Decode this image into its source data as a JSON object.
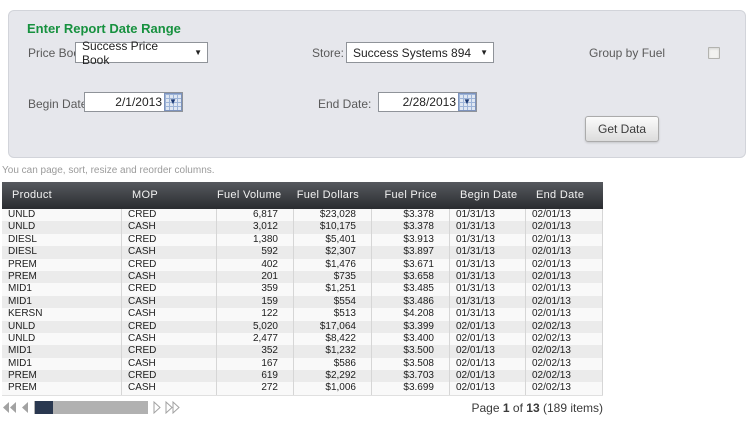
{
  "colors": {
    "title_green": "#17913f",
    "panel_background": "#e6e7ec",
    "table_header_top": "#56595e",
    "table_header_bottom": "#2a2c30",
    "row_odd": "#f9f9f9",
    "row_even": "#ebebeb",
    "pager_thumb": "#2a3850"
  },
  "panel": {
    "title": "Enter Report Date Range",
    "price_book": {
      "label": "Price Book:",
      "value": "Success Price Book"
    },
    "store": {
      "label": "Store:",
      "value": "Success Systems 894"
    },
    "group_by_fuel": {
      "label": "Group by Fuel",
      "checked": false
    },
    "begin_date": {
      "label": "Begin Date:",
      "value": "2/1/2013"
    },
    "end_date": {
      "label": "End Date:",
      "value": "2/28/2013"
    },
    "get_data_label": "Get Data"
  },
  "hint": "You can page, sort, resize and reorder columns.",
  "table": {
    "columns": [
      {
        "key": "product",
        "label": "Product",
        "align": "left"
      },
      {
        "key": "mop",
        "label": "MOP",
        "align": "left"
      },
      {
        "key": "fuel_volume",
        "label": "Fuel Volume",
        "align": "right"
      },
      {
        "key": "fuel_dollars",
        "label": "Fuel Dollars",
        "align": "right"
      },
      {
        "key": "fuel_price",
        "label": "Fuel Price",
        "align": "right"
      },
      {
        "key": "begin_date",
        "label": "Begin Date",
        "align": "left"
      },
      {
        "key": "end_date",
        "label": "End Date",
        "align": "left"
      }
    ],
    "rows": [
      {
        "product": "UNLD",
        "mop": "CRED",
        "fuel_volume": "6,817",
        "fuel_dollars": "$23,028",
        "fuel_price": "$3.378",
        "begin_date": "01/31/13",
        "end_date": "02/01/13"
      },
      {
        "product": "UNLD",
        "mop": "CASH",
        "fuel_volume": "3,012",
        "fuel_dollars": "$10,175",
        "fuel_price": "$3.378",
        "begin_date": "01/31/13",
        "end_date": "02/01/13"
      },
      {
        "product": "DIESL",
        "mop": "CRED",
        "fuel_volume": "1,380",
        "fuel_dollars": "$5,401",
        "fuel_price": "$3.913",
        "begin_date": "01/31/13",
        "end_date": "02/01/13"
      },
      {
        "product": "DIESL",
        "mop": "CASH",
        "fuel_volume": "592",
        "fuel_dollars": "$2,307",
        "fuel_price": "$3.897",
        "begin_date": "01/31/13",
        "end_date": "02/01/13"
      },
      {
        "product": "PREM",
        "mop": "CRED",
        "fuel_volume": "402",
        "fuel_dollars": "$1,476",
        "fuel_price": "$3.671",
        "begin_date": "01/31/13",
        "end_date": "02/01/13"
      },
      {
        "product": "PREM",
        "mop": "CASH",
        "fuel_volume": "201",
        "fuel_dollars": "$735",
        "fuel_price": "$3.658",
        "begin_date": "01/31/13",
        "end_date": "02/01/13"
      },
      {
        "product": "MID1",
        "mop": "CRED",
        "fuel_volume": "359",
        "fuel_dollars": "$1,251",
        "fuel_price": "$3.485",
        "begin_date": "01/31/13",
        "end_date": "02/01/13"
      },
      {
        "product": "MID1",
        "mop": "CASH",
        "fuel_volume": "159",
        "fuel_dollars": "$554",
        "fuel_price": "$3.486",
        "begin_date": "01/31/13",
        "end_date": "02/01/13"
      },
      {
        "product": "KERSN",
        "mop": "CASH",
        "fuel_volume": "122",
        "fuel_dollars": "$513",
        "fuel_price": "$4.208",
        "begin_date": "01/31/13",
        "end_date": "02/01/13"
      },
      {
        "product": "UNLD",
        "mop": "CRED",
        "fuel_volume": "5,020",
        "fuel_dollars": "$17,064",
        "fuel_price": "$3.399",
        "begin_date": "02/01/13",
        "end_date": "02/02/13"
      },
      {
        "product": "UNLD",
        "mop": "CASH",
        "fuel_volume": "2,477",
        "fuel_dollars": "$8,422",
        "fuel_price": "$3.400",
        "begin_date": "02/01/13",
        "end_date": "02/02/13"
      },
      {
        "product": "MID1",
        "mop": "CRED",
        "fuel_volume": "352",
        "fuel_dollars": "$1,232",
        "fuel_price": "$3.500",
        "begin_date": "02/01/13",
        "end_date": "02/02/13"
      },
      {
        "product": "MID1",
        "mop": "CASH",
        "fuel_volume": "167",
        "fuel_dollars": "$586",
        "fuel_price": "$3.508",
        "begin_date": "02/01/13",
        "end_date": "02/02/13"
      },
      {
        "product": "PREM",
        "mop": "CRED",
        "fuel_volume": "619",
        "fuel_dollars": "$2,292",
        "fuel_price": "$3.703",
        "begin_date": "02/01/13",
        "end_date": "02/02/13"
      },
      {
        "product": "PREM",
        "mop": "CASH",
        "fuel_volume": "272",
        "fuel_dollars": "$1,006",
        "fuel_price": "$3.699",
        "begin_date": "02/01/13",
        "end_date": "02/02/13"
      }
    ]
  },
  "pager": {
    "page_label": "Page",
    "current": "1",
    "of_label": "of",
    "total": "13",
    "items_label": "(189 items)"
  }
}
